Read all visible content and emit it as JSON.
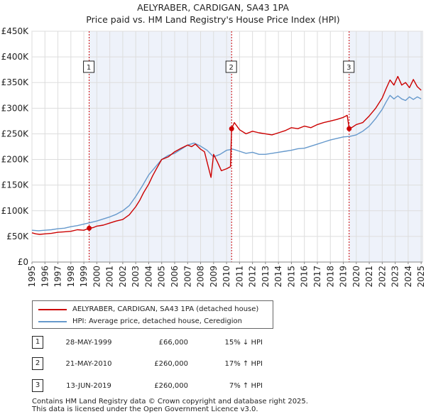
{
  "title_line1": "AELYRABER, CARDIGAN, SA43 1PA",
  "title_line2": "Price paid vs. HM Land Registry's House Price Index (HPI)",
  "colors": {
    "property": "#cc0000",
    "hpi": "#6699cc",
    "shade": "#eef2fa",
    "grid": "#ffffff",
    "marker": "#cc0000"
  },
  "chart_data": {
    "type": "line",
    "title": "AELYRABER, CARDIGAN, SA43 1PA — Price paid vs. HM Land Registry's House Price Index (HPI)",
    "xlabel": "",
    "ylabel": "",
    "xlim": [
      1995,
      2025.1
    ],
    "ylim": [
      0,
      450000
    ],
    "x_ticks": [
      1995,
      1996,
      1997,
      1998,
      1999,
      2000,
      2001,
      2002,
      2003,
      2004,
      2005,
      2006,
      2007,
      2008,
      2009,
      2010,
      2011,
      2012,
      2013,
      2014,
      2015,
      2016,
      2017,
      2018,
      2019,
      2020,
      2021,
      2022,
      2023,
      2024,
      2025
    ],
    "y_ticks": [
      {
        "value": 0,
        "label": "£0"
      },
      {
        "value": 50000,
        "label": "£50K"
      },
      {
        "value": 100000,
        "label": "£100K"
      },
      {
        "value": 150000,
        "label": "£150K"
      },
      {
        "value": 200000,
        "label": "£200K"
      },
      {
        "value": 250000,
        "label": "£250K"
      },
      {
        "value": 300000,
        "label": "£300K"
      },
      {
        "value": 350000,
        "label": "£350K"
      },
      {
        "value": 400000,
        "label": "£400K"
      },
      {
        "value": 450000,
        "label": "£450K"
      }
    ],
    "series": [
      {
        "name": "AELYRABER, CARDIGAN, SA43 1PA (detached house)",
        "color": "#cc0000",
        "x": [
          1995.0,
          1995.3,
          1995.6,
          1996.0,
          1996.5,
          1997.0,
          1997.5,
          1998.0,
          1998.5,
          1999.0,
          1999.41,
          1999.7,
          2000.0,
          2000.5,
          2001.0,
          2001.5,
          2002.0,
          2002.5,
          2003.0,
          2003.3,
          2003.6,
          2004.0,
          2004.3,
          2004.6,
          2005.0,
          2005.5,
          2006.0,
          2006.5,
          2007.0,
          2007.3,
          2007.6,
          2008.0,
          2008.3,
          2008.6,
          2008.8,
          2009.0,
          2009.3,
          2009.6,
          2010.0,
          2010.3,
          2010.39,
          2010.6,
          2010.8,
          2011.0,
          2011.5,
          2012.0,
          2012.5,
          2013.0,
          2013.5,
          2014.0,
          2014.5,
          2015.0,
          2015.5,
          2016.0,
          2016.5,
          2017.0,
          2017.5,
          2018.0,
          2018.5,
          2019.0,
          2019.3,
          2019.45,
          2019.7,
          2020.0,
          2020.5,
          2021.0,
          2021.5,
          2022.0,
          2022.3,
          2022.6,
          2022.9,
          2023.2,
          2023.5,
          2023.8,
          2024.1,
          2024.4,
          2024.7,
          2025.0
        ],
        "values": [
          57000,
          55000,
          54000,
          55000,
          56000,
          58000,
          59000,
          60000,
          63000,
          62000,
          66000,
          67000,
          70000,
          72000,
          76000,
          80000,
          83000,
          92000,
          108000,
          120000,
          135000,
          152000,
          168000,
          182000,
          200000,
          205000,
          215000,
          222000,
          228000,
          225000,
          230000,
          220000,
          215000,
          185000,
          165000,
          210000,
          195000,
          178000,
          182000,
          186000,
          260000,
          272000,
          265000,
          258000,
          250000,
          255000,
          252000,
          250000,
          248000,
          252000,
          256000,
          262000,
          260000,
          265000,
          262000,
          268000,
          272000,
          275000,
          278000,
          282000,
          286000,
          260000,
          263000,
          268000,
          272000,
          285000,
          300000,
          320000,
          338000,
          355000,
          345000,
          362000,
          345000,
          350000,
          340000,
          356000,
          342000,
          335000
        ]
      },
      {
        "name": "HPI: Average price, detached house, Ceredigion",
        "color": "#6699cc",
        "x": [
          1995.0,
          1995.5,
          1996.0,
          1996.5,
          1997.0,
          1997.5,
          1998.0,
          1998.5,
          1999.0,
          1999.5,
          2000.0,
          2000.5,
          2001.0,
          2001.5,
          2002.0,
          2002.5,
          2003.0,
          2003.5,
          2004.0,
          2004.5,
          2005.0,
          2005.5,
          2006.0,
          2006.5,
          2007.0,
          2007.5,
          2008.0,
          2008.5,
          2009.0,
          2009.5,
          2010.0,
          2010.5,
          2011.0,
          2011.5,
          2012.0,
          2012.5,
          2013.0,
          2013.5,
          2014.0,
          2014.5,
          2015.0,
          2015.5,
          2016.0,
          2016.5,
          2017.0,
          2017.5,
          2018.0,
          2018.5,
          2019.0,
          2019.5,
          2020.0,
          2020.5,
          2021.0,
          2021.5,
          2022.0,
          2022.3,
          2022.6,
          2022.9,
          2023.2,
          2023.5,
          2023.8,
          2024.1,
          2024.4,
          2024.7,
          2025.0
        ],
        "values": [
          62000,
          61000,
          62000,
          63000,
          65000,
          66000,
          69000,
          71000,
          74000,
          77000,
          80000,
          84000,
          88000,
          93000,
          100000,
          110000,
          128000,
          148000,
          170000,
          185000,
          200000,
          208000,
          212000,
          220000,
          228000,
          232000,
          226000,
          218000,
          205000,
          210000,
          218000,
          220000,
          216000,
          212000,
          214000,
          210000,
          210000,
          212000,
          214000,
          216000,
          218000,
          221000,
          222000,
          226000,
          230000,
          234000,
          238000,
          241000,
          244000,
          245000,
          248000,
          255000,
          265000,
          280000,
          298000,
          312000,
          325000,
          318000,
          324000,
          318000,
          315000,
          322000,
          317000,
          322000,
          318000
        ]
      }
    ],
    "sales": [
      {
        "label": "1",
        "x": 1999.41,
        "value": 66000
      },
      {
        "label": "2",
        "x": 2010.39,
        "value": 260000
      },
      {
        "label": "3",
        "x": 2019.45,
        "value": 260000
      }
    ],
    "legend_position": "bottom-left"
  },
  "legend": {
    "property": "AELYRABER, CARDIGAN, SA43 1PA (detached house)",
    "hpi": "HPI: Average price, detached house, Ceredigion"
  },
  "sales_table": [
    {
      "num": "1",
      "date": "28-MAY-1999",
      "price": "£66,000",
      "hpi": "15% ↓ HPI"
    },
    {
      "num": "2",
      "date": "21-MAY-2010",
      "price": "£260,000",
      "hpi": "17% ↑ HPI"
    },
    {
      "num": "3",
      "date": "13-JUN-2019",
      "price": "£260,000",
      "hpi": "7% ↑ HPI"
    }
  ],
  "footer": {
    "line1": "Contains HM Land Registry data © Crown copyright and database right 2025.",
    "line2": "This data is licensed under the Open Government Licence v3.0."
  }
}
